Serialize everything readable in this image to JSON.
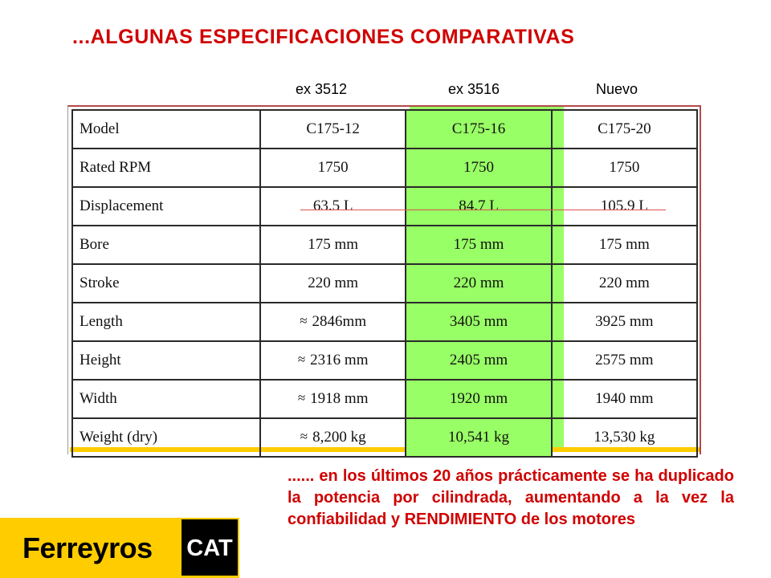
{
  "slide": {
    "title": "...ALGUNAS ESPECIFICACIONES COMPARATIVAS",
    "column_labels": [
      "ex 3512",
      "ex 3516",
      "Nuevo"
    ],
    "note": "...... en los últimos 20 años prácticamente se ha duplicado la potencia por cilindrada, aumentando a la vez la confiabilidad y RENDIMIENTO de los motores",
    "colors": {
      "title": "#d00000",
      "highlight": "#99ff66",
      "brand_yellow": "#ffcc00"
    }
  },
  "table": {
    "rows": [
      {
        "label": "Model",
        "values": [
          "C175-12",
          "C175-16",
          "C175-20"
        ]
      },
      {
        "label": "Rated RPM",
        "values": [
          "1750",
          "1750",
          "1750"
        ]
      },
      {
        "label": "Displacement",
        "values": [
          "63.5 L",
          "84.7 L",
          "105.9 L"
        ]
      },
      {
        "label": "Bore",
        "values": [
          "175 mm",
          "175 mm",
          "175 mm"
        ]
      },
      {
        "label": "Stroke",
        "values": [
          "220 mm",
          "220 mm",
          "220 mm"
        ]
      },
      {
        "label": "Length",
        "values": [
          "2846mm",
          "3405 mm",
          "3925 mm"
        ]
      },
      {
        "label": "Height",
        "values": [
          "2316 mm",
          "2405 mm",
          "2575 mm"
        ]
      },
      {
        "label": "Width",
        "values": [
          "1918 mm",
          "1920 mm",
          "1940 mm"
        ]
      },
      {
        "label": "Weight (dry)",
        "values": [
          "8,200 kg",
          "10,541 kg",
          "13,530 kg"
        ]
      }
    ],
    "approx_symbol": "≈"
  },
  "logos": {
    "ferreyros": "Ferreyros",
    "cat": "CAT"
  }
}
